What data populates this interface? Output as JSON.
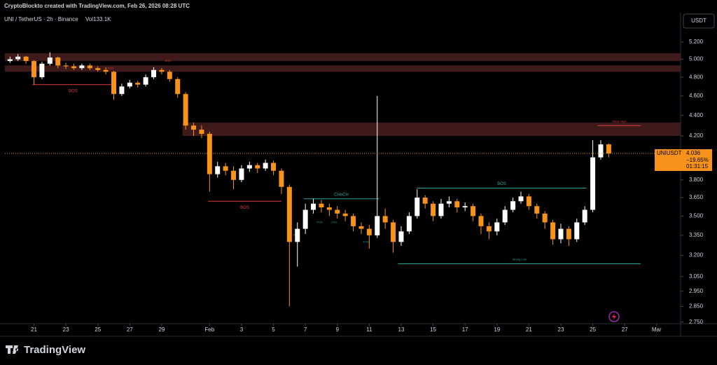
{
  "header": {
    "credit": "CryptoBlockto created with TradingView.com, Feb 26, 2026 08:28 UTC",
    "legend": "UNI / TetherUS · 2h · Binance",
    "volume": "Vol133.1K",
    "currency": "USDT",
    "brand": "TradingView"
  },
  "chart_data": {
    "type": "candlestick",
    "log_scale": true,
    "grid": false,
    "up_color": "#ffffff",
    "down_color": "#f7931a",
    "x": [
      19.5,
      20,
      20.5,
      21,
      21.5,
      22,
      22.5,
      23,
      23.5,
      24,
      24.5,
      25,
      25.5,
      26,
      26.5,
      27,
      27.5,
      28,
      28.5,
      29,
      29.5,
      30,
      30.5,
      31,
      31.5,
      32,
      32.5,
      33,
      33.5,
      34,
      34.5,
      35,
      35.5,
      36,
      36.5,
      37,
      37.5,
      38,
      38.5,
      39,
      39.5,
      40,
      40.5,
      41,
      41.5,
      42,
      42.5,
      43,
      43.5,
      44,
      44.5,
      45,
      45.5,
      46,
      46.5,
      47,
      47.5,
      48,
      48.5,
      49,
      49.5,
      50,
      50.5,
      51,
      51.5,
      52,
      52.5,
      53,
      53.5,
      54,
      54.5,
      55,
      55.5,
      56,
      56.5,
      57
    ],
    "open": [
      4.98,
      5.0,
      5.03,
      4.98,
      4.8,
      4.95,
      5.02,
      4.93,
      4.92,
      4.9,
      4.93,
      4.9,
      4.88,
      4.86,
      4.62,
      4.7,
      4.74,
      4.72,
      4.8,
      4.88,
      4.86,
      4.78,
      4.62,
      4.3,
      4.26,
      4.22,
      3.85,
      3.92,
      3.88,
      3.8,
      3.9,
      3.93,
      3.9,
      3.95,
      3.88,
      3.74,
      3.3,
      3.4,
      3.55,
      3.6,
      3.57,
      3.55,
      3.52,
      3.5,
      3.42,
      3.4,
      3.35,
      3.5,
      3.45,
      3.3,
      3.38,
      3.5,
      3.65,
      3.6,
      3.5,
      3.6,
      3.62,
      3.57,
      3.58,
      3.5,
      3.42,
      3.38,
      3.45,
      3.55,
      3.62,
      3.66,
      3.58,
      3.52,
      3.45,
      3.32,
      3.4,
      3.32,
      3.45,
      3.55,
      4.0,
      4.12
    ],
    "high": [
      5.03,
      5.06,
      5.04,
      4.99,
      4.97,
      5.08,
      5.03,
      4.96,
      4.95,
      4.95,
      4.95,
      4.92,
      4.91,
      4.87,
      4.73,
      4.77,
      4.76,
      4.83,
      4.91,
      4.9,
      4.88,
      4.8,
      4.64,
      4.33,
      4.3,
      4.24,
      3.96,
      3.95,
      3.92,
      3.93,
      3.96,
      3.95,
      3.98,
      3.97,
      3.9,
      3.76,
      3.45,
      3.6,
      3.64,
      3.63,
      3.6,
      3.58,
      3.55,
      3.52,
      3.45,
      3.43,
      4.6,
      3.56,
      3.47,
      3.42,
      3.53,
      3.72,
      3.67,
      3.62,
      3.64,
      3.66,
      3.64,
      3.61,
      3.6,
      3.52,
      3.45,
      3.48,
      3.58,
      3.65,
      3.7,
      3.68,
      3.6,
      3.54,
      3.47,
      3.44,
      3.42,
      3.48,
      3.58,
      4.16,
      4.16,
      4.13
    ],
    "low": [
      4.96,
      4.98,
      4.95,
      4.72,
      4.78,
      4.93,
      4.9,
      4.89,
      4.88,
      4.88,
      4.88,
      4.86,
      4.83,
      4.56,
      4.6,
      4.68,
      4.69,
      4.7,
      4.78,
      4.83,
      4.75,
      4.58,
      4.26,
      4.2,
      4.18,
      3.7,
      3.82,
      3.84,
      3.72,
      3.78,
      3.87,
      3.86,
      3.88,
      3.84,
      3.68,
      2.85,
      3.12,
      3.36,
      3.52,
      3.53,
      3.5,
      3.48,
      3.46,
      3.38,
      3.36,
      3.25,
      3.33,
      3.4,
      3.22,
      3.27,
      3.36,
      3.48,
      3.56,
      3.46,
      3.48,
      3.57,
      3.53,
      3.54,
      3.46,
      3.36,
      3.32,
      3.35,
      3.43,
      3.53,
      3.6,
      3.55,
      3.48,
      3.4,
      3.28,
      3.29,
      3.27,
      3.3,
      3.43,
      3.53,
      3.98,
      4.0
    ],
    "close": [
      5.0,
      5.03,
      4.98,
      4.8,
      4.95,
      5.02,
      4.93,
      4.92,
      4.9,
      4.93,
      4.9,
      4.88,
      4.86,
      4.62,
      4.7,
      4.74,
      4.72,
      4.8,
      4.88,
      4.86,
      4.78,
      4.62,
      4.3,
      4.26,
      4.22,
      3.85,
      3.92,
      3.88,
      3.8,
      3.9,
      3.93,
      3.9,
      3.95,
      3.88,
      3.74,
      3.3,
      3.4,
      3.55,
      3.6,
      3.57,
      3.55,
      3.52,
      3.5,
      3.42,
      3.4,
      3.35,
      3.5,
      3.45,
      3.3,
      3.38,
      3.5,
      3.65,
      3.6,
      3.5,
      3.6,
      3.62,
      3.57,
      3.58,
      3.5,
      3.42,
      3.38,
      3.45,
      3.55,
      3.62,
      3.66,
      3.58,
      3.52,
      3.45,
      3.32,
      3.4,
      3.32,
      3.45,
      3.55,
      4.0,
      4.12,
      4.036
    ],
    "xlim": [
      19.18,
      61.5
    ],
    "xticks": [
      21,
      23,
      25,
      27,
      29,
      {
        "value": 32,
        "label": "Feb"
      },
      {
        "value": 34,
        "label": "3"
      },
      {
        "value": 36,
        "label": "5"
      },
      {
        "value": 38,
        "label": "7"
      },
      {
        "value": 40,
        "label": "9"
      },
      {
        "value": 42,
        "label": "11"
      },
      {
        "value": 44,
        "label": "13"
      },
      {
        "value": 46,
        "label": "15"
      },
      {
        "value": 48,
        "label": "17"
      },
      {
        "value": 50,
        "label": "19"
      },
      {
        "value": 52,
        "label": "21"
      },
      {
        "value": 54,
        "label": "23"
      },
      {
        "value": 56,
        "label": "25"
      },
      {
        "value": 58,
        "label": "27"
      },
      {
        "value": 60,
        "label": "Mar"
      }
    ],
    "ylim": [
      2.74,
      5.56
    ],
    "yticks": [
      {
        "value": 5.2,
        "label": "5.200"
      },
      {
        "value": 5,
        "label": "5.000"
      },
      {
        "value": 4.8,
        "label": "4.800"
      },
      {
        "value": 4.6,
        "label": "4.600"
      },
      {
        "value": 4.4,
        "label": "4.400"
      },
      {
        "value": 4.2,
        "label": "4.200"
      },
      {
        "value": 3.8,
        "label": "3.800"
      },
      {
        "value": 3.65,
        "label": "3.650"
      },
      {
        "value": 3.5,
        "label": "3.500"
      },
      {
        "value": 3.35,
        "label": "3.350"
      },
      {
        "value": 3.2,
        "label": "3.200"
      },
      {
        "value": 3.05,
        "label": "3.050"
      },
      {
        "value": 2.95,
        "label": "2.950"
      },
      {
        "value": 2.85,
        "label": "2.850"
      },
      {
        "value": 2.75,
        "label": "2.750"
      }
    ],
    "zones": [
      {
        "x0": 19.18,
        "x1": 61.5,
        "top": 5.07,
        "bottom": 4.98
      },
      {
        "x0": 19.18,
        "x1": 61.5,
        "top": 4.93,
        "bottom": 4.86
      },
      {
        "x0": 30.3,
        "x1": 61.5,
        "top": 4.33,
        "bottom": 4.2
      }
    ],
    "levels": [
      {
        "label": "BOS",
        "price": 4.72,
        "x0": 20.9,
        "x1": 26,
        "color": "#e03b3b"
      },
      {
        "label": "BOS",
        "price": 3.62,
        "x0": 31.9,
        "x1": 36.5,
        "color": "#e03b3b"
      },
      {
        "label": "CHoCH",
        "price": 3.64,
        "x0": 37.9,
        "x1": 42.6,
        "color": "#26a69a"
      },
      {
        "label": "BOS",
        "price": 3.73,
        "x0": 45,
        "x1": 55.6,
        "color": "#26a69a"
      },
      {
        "label": "Weak High",
        "price": 4.3,
        "x0": 56.3,
        "x1": 59,
        "color": "#e03b3b"
      },
      {
        "label": "Strong Low",
        "price": 3.14,
        "x0": 43.8,
        "x1": 59,
        "color": "#26a69a"
      }
    ],
    "notes": [
      {
        "text": "EQH",
        "x": 25.8,
        "price": 4.9,
        "color": "#e03b3b"
      },
      {
        "text": "EQH",
        "x": 29.4,
        "price": 4.98,
        "color": "#e03b3b"
      },
      {
        "text": "FVG",
        "x": 38.9,
        "price": 3.45,
        "color": "#26a69a"
      },
      {
        "text": "FVG",
        "x": 39.8,
        "price": 3.45,
        "color": "#26a69a"
      },
      {
        "text": "FVG",
        "x": 41.8,
        "price": 3.3,
        "color": "#26a69a"
      },
      {
        "text": "FVG",
        "x": 37.4,
        "price": 3.35,
        "color": "#26a69a"
      }
    ],
    "last_price": {
      "symbol": "UNIUSDT",
      "value": 4.036,
      "change": "−19.65%",
      "countdown": "01:31:15"
    }
  }
}
